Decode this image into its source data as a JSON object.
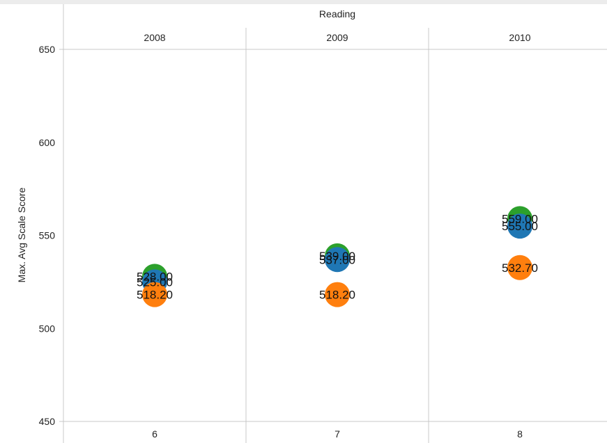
{
  "chart_data": {
    "type": "scatter",
    "title": "Reading",
    "column_headers": [
      "2008",
      "2009",
      "2010"
    ],
    "x_categories": [
      "6",
      "7",
      "8"
    ],
    "ylabel": "Max. Avg Scale Score",
    "ylim": [
      450,
      650
    ],
    "yticks": [
      450,
      500,
      550,
      600,
      650
    ],
    "grid": false,
    "series": [
      {
        "color": "#2ca02c",
        "values": [
          528.0,
          539.0,
          559.0
        ],
        "labels": [
          "528.00",
          "539.00",
          "559.00"
        ]
      },
      {
        "color": "#1f77b4",
        "values": [
          525.0,
          537.0,
          555.0
        ],
        "labels": [
          "525.00",
          "537.00",
          "555.00"
        ]
      },
      {
        "color": "#ff7f0e",
        "values": [
          518.2,
          518.2,
          532.7
        ],
        "labels": [
          "518.20",
          "518.20",
          "532.70"
        ]
      }
    ]
  }
}
